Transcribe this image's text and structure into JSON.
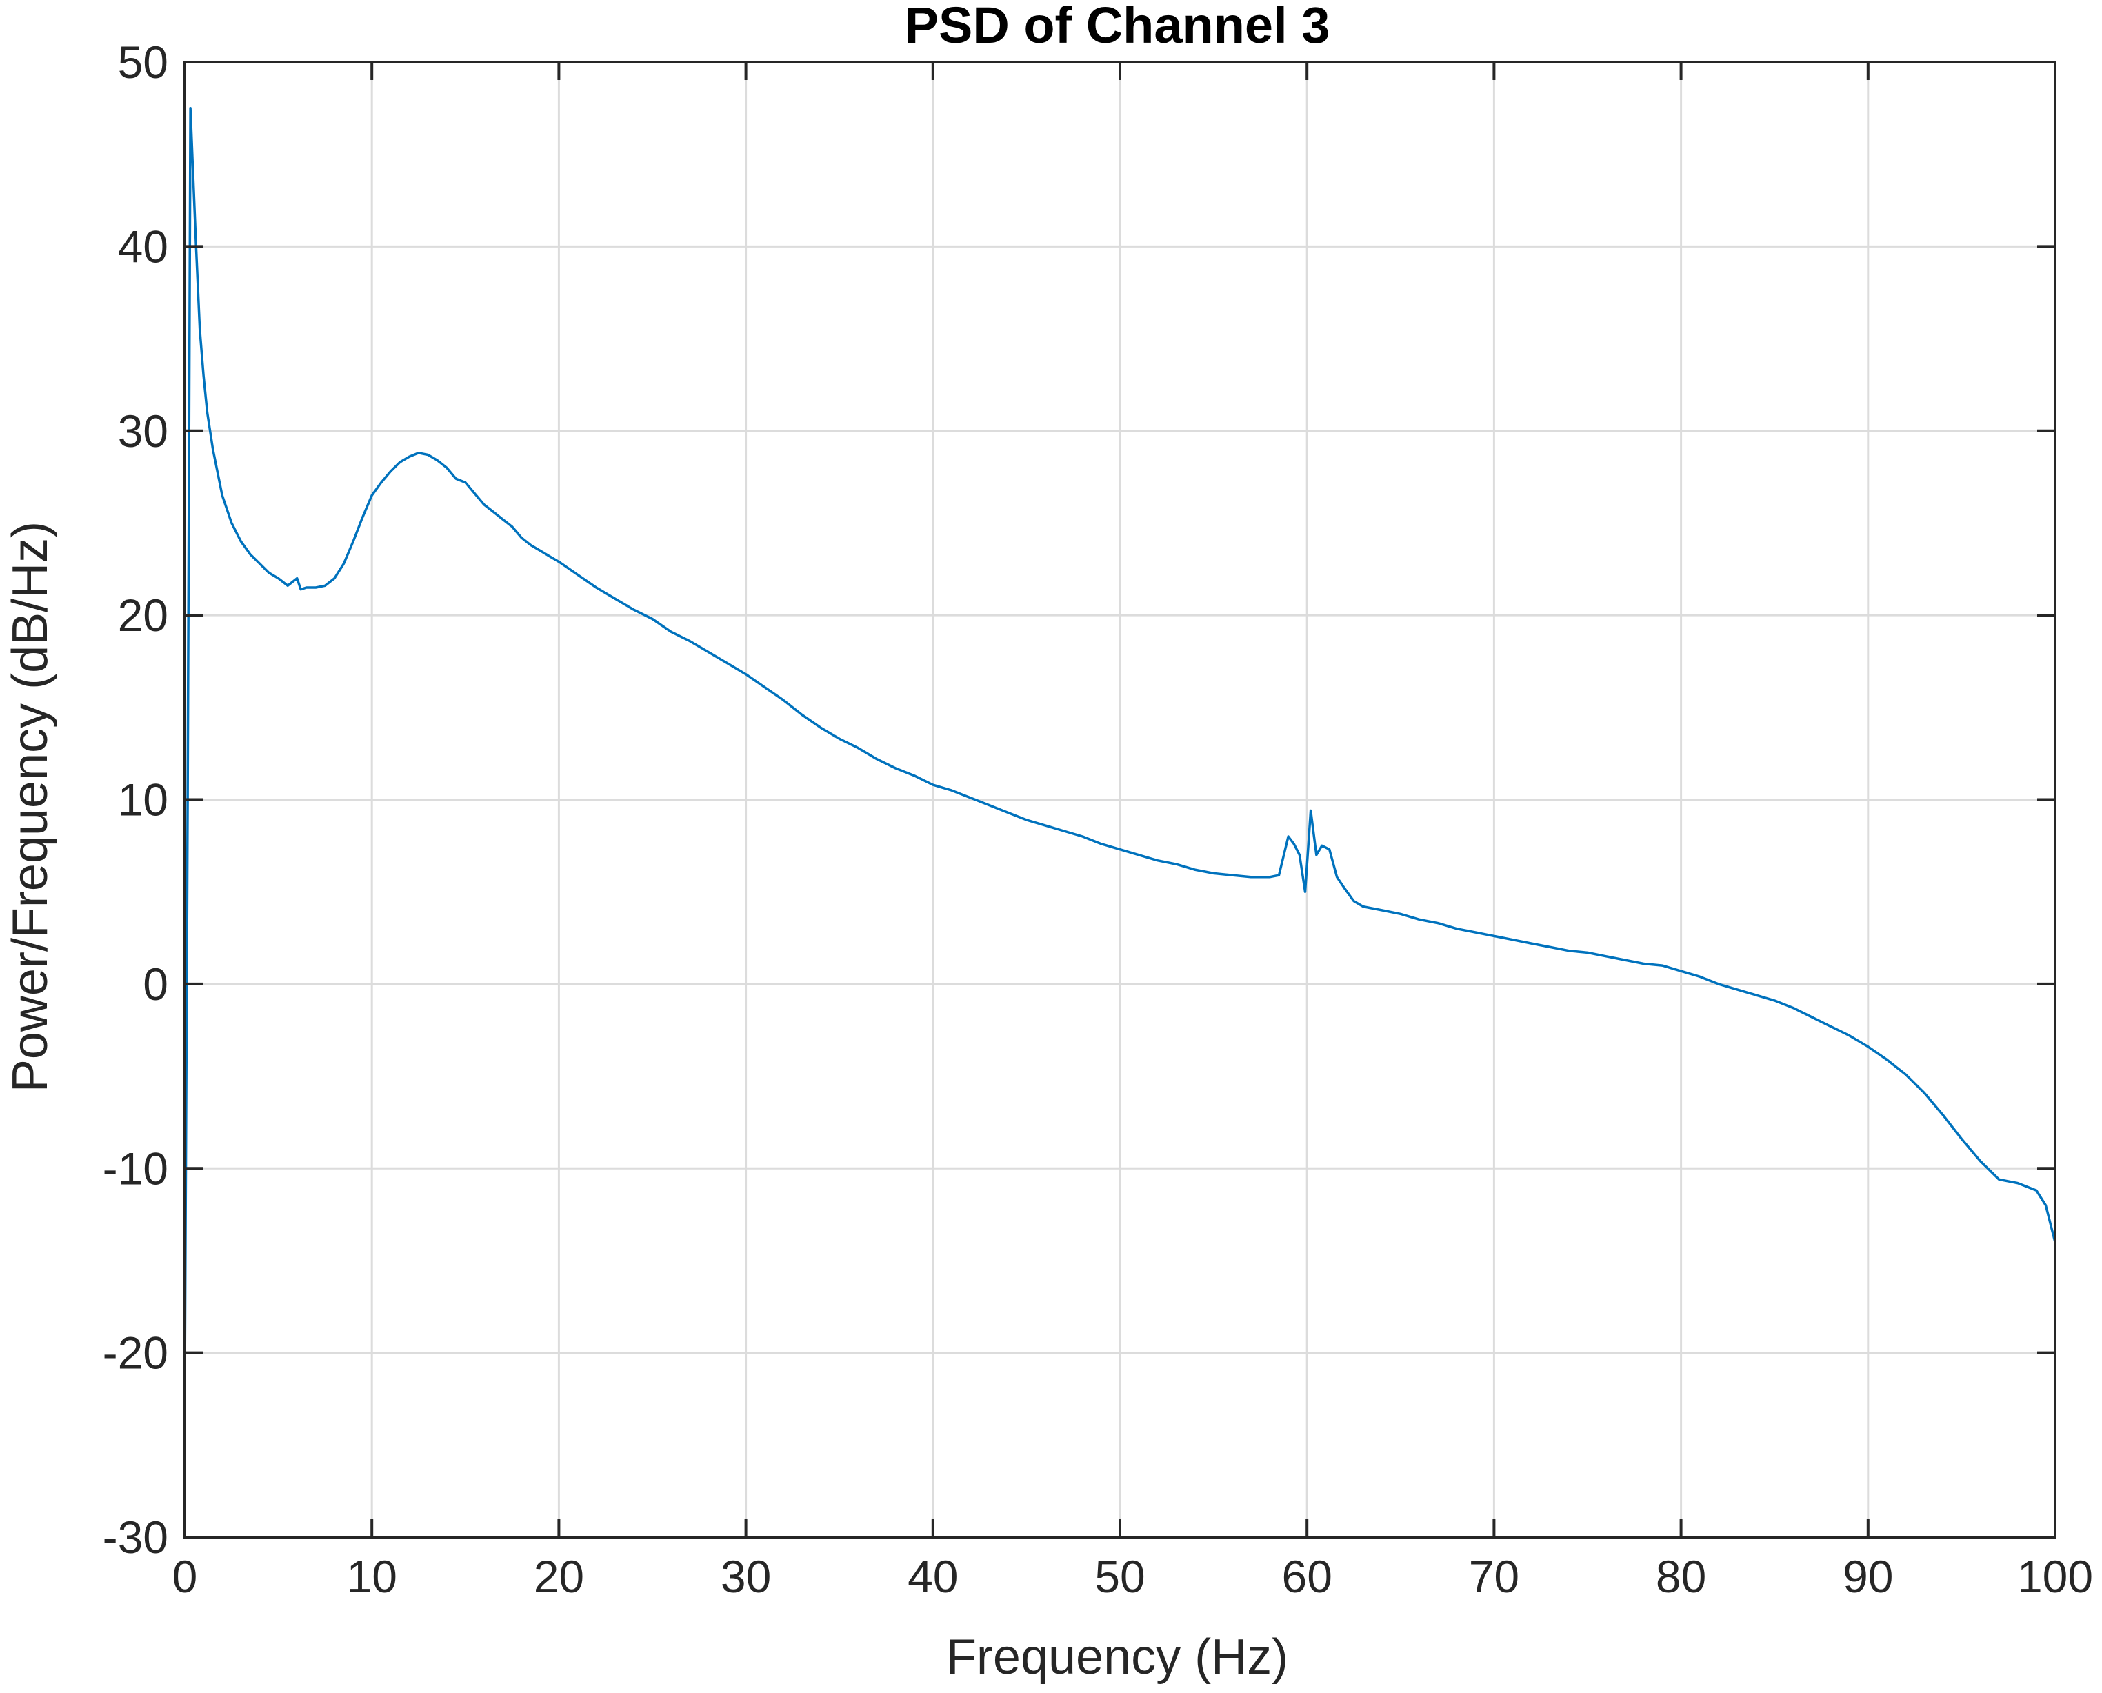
{
  "chart_data": {
    "type": "line",
    "title": "PSD of Channel 3",
    "xlabel": "Frequency (Hz)",
    "ylabel": "Power/Frequency (dB/Hz)",
    "xlim": [
      0,
      100
    ],
    "ylim": [
      -30,
      50
    ],
    "xticks": [
      0,
      10,
      20,
      30,
      40,
      50,
      60,
      70,
      80,
      90,
      100
    ],
    "yticks": [
      -30,
      -20,
      -10,
      0,
      10,
      20,
      30,
      40,
      50
    ],
    "xtick_labels": [
      "0",
      "10",
      "20",
      "30",
      "40",
      "50",
      "60",
      "70",
      "80",
      "90",
      "100"
    ],
    "ytick_labels": [
      "-30",
      "-20",
      "-10",
      "0",
      "10",
      "20",
      "30",
      "40",
      "50"
    ],
    "grid": true,
    "line_color": "#0072BD",
    "series": [
      {
        "x": [
          0,
          0.15,
          0.3,
          0.4,
          0.6,
          0.8,
          1.0,
          1.2,
          1.5,
          2.0,
          2.5,
          3.0,
          3.5,
          4.0,
          4.5,
          5.0,
          5.5,
          6.0,
          6.2,
          6.5,
          7.0,
          7.5,
          8.0,
          8.5,
          9.0,
          9.5,
          10.0,
          10.5,
          11.0,
          11.5,
          12.0,
          12.5,
          13.0,
          13.5,
          14.0,
          14.5,
          15.0,
          15.5,
          16.0,
          16.5,
          17.0,
          17.5,
          18.0,
          18.5,
          19.0,
          19.5,
          20.0,
          21.0,
          22.0,
          23.0,
          24.0,
          25.0,
          26.0,
          27.0,
          28.0,
          29.0,
          30.0,
          31.0,
          32.0,
          33.0,
          34.0,
          35.0,
          36.0,
          37.0,
          38.0,
          39.0,
          40.0,
          41.0,
          42.0,
          43.0,
          44.0,
          45.0,
          46.0,
          47.0,
          48.0,
          49.0,
          50.0,
          51.0,
          52.0,
          53.0,
          54.0,
          55.0,
          56.0,
          57.0,
          58.0,
          58.5,
          59.0,
          59.3,
          59.6,
          59.9,
          60.2,
          60.5,
          60.8,
          61.2,
          61.6,
          62.0,
          62.5,
          63.0,
          64.0,
          65.0,
          66.0,
          67.0,
          68.0,
          69.0,
          70.0,
          71.0,
          72.0,
          73.0,
          74.0,
          75.0,
          76.0,
          77.0,
          78.0,
          79.0,
          80.0,
          81.0,
          82.0,
          83.0,
          84.0,
          85.0,
          86.0,
          87.0,
          88.0,
          89.0,
          90.0,
          91.0,
          92.0,
          93.0,
          94.0,
          95.0,
          96.0,
          97.0,
          98.0,
          99.0,
          99.5,
          100.0
        ],
        "y": [
          -21.5,
          10.0,
          47.5,
          45.0,
          40.0,
          35.5,
          33.0,
          31.0,
          29.0,
          26.5,
          25.0,
          24.0,
          23.3,
          22.8,
          22.3,
          22.0,
          21.6,
          22.0,
          21.4,
          21.5,
          21.5,
          21.6,
          22.0,
          22.8,
          24.0,
          25.3,
          26.5,
          27.2,
          27.8,
          28.3,
          28.6,
          28.8,
          28.7,
          28.4,
          28.0,
          27.4,
          27.2,
          26.6,
          26.0,
          25.6,
          25.2,
          24.8,
          24.2,
          23.8,
          23.5,
          23.2,
          22.9,
          22.2,
          21.5,
          20.9,
          20.3,
          19.8,
          19.1,
          18.6,
          18.0,
          17.4,
          16.8,
          16.1,
          15.4,
          14.6,
          13.9,
          13.3,
          12.8,
          12.2,
          11.7,
          11.3,
          10.8,
          10.5,
          10.1,
          9.7,
          9.3,
          8.9,
          8.6,
          8.3,
          8.0,
          7.6,
          7.3,
          7.0,
          6.7,
          6.5,
          6.2,
          6.0,
          5.9,
          5.8,
          5.8,
          5.9,
          8.0,
          7.6,
          7.0,
          5.0,
          9.4,
          7.0,
          7.5,
          7.3,
          5.8,
          5.2,
          4.5,
          4.2,
          4.0,
          3.8,
          3.5,
          3.3,
          3.0,
          2.8,
          2.6,
          2.4,
          2.2,
          2.0,
          1.8,
          1.7,
          1.5,
          1.3,
          1.1,
          1.0,
          0.7,
          0.4,
          0.0,
          -0.3,
          -0.6,
          -0.9,
          -1.3,
          -1.8,
          -2.3,
          -2.8,
          -3.4,
          -4.1,
          -4.9,
          -5.9,
          -7.1,
          -8.4,
          -9.6,
          -10.6,
          -10.8,
          -11.2,
          -12.0,
          -14.0
        ]
      }
    ]
  }
}
